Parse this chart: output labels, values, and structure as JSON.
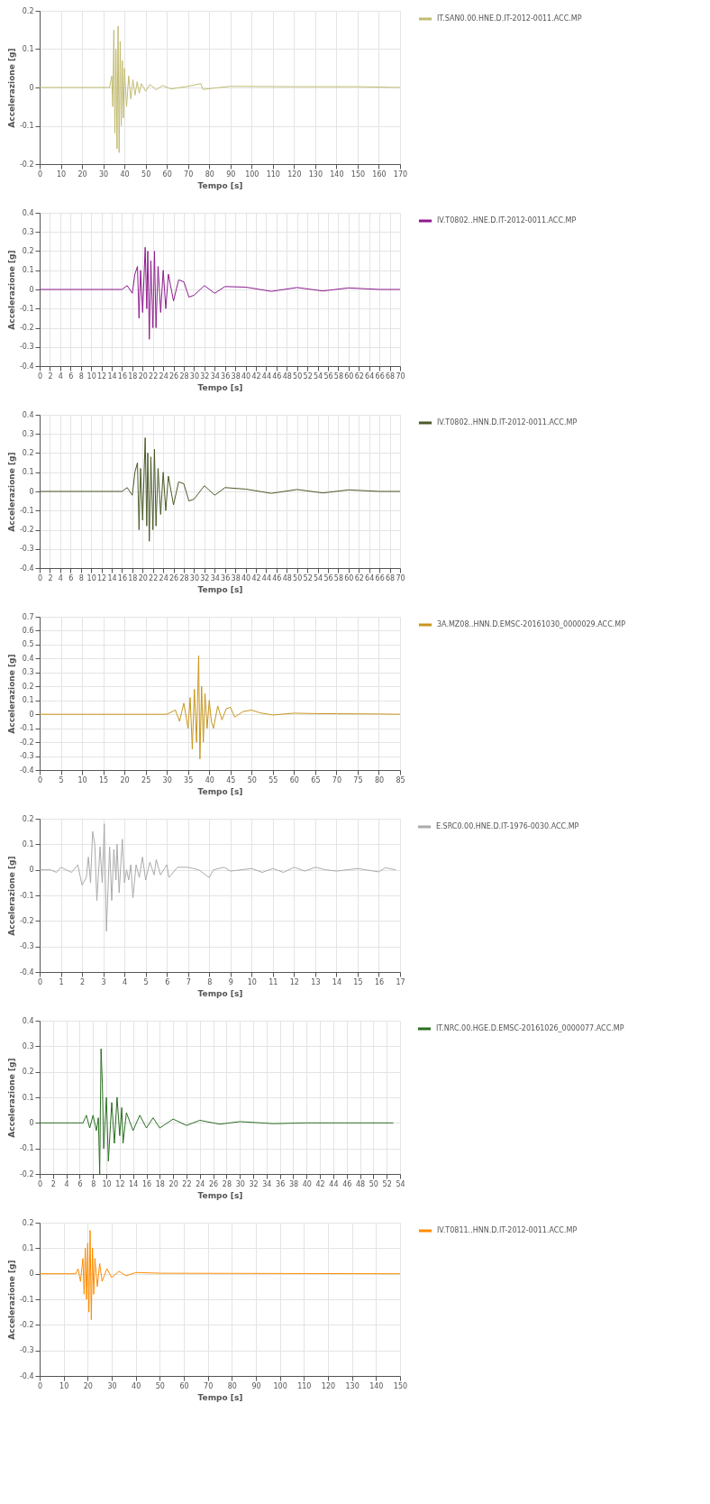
{
  "chart_data": [
    {
      "type": "line",
      "xlabel": "Tempo [s]",
      "ylabel": "Accelerazione [g]",
      "grid": true,
      "legend": "right",
      "xlim": [
        0,
        170
      ],
      "ylim": [
        -0.2,
        0.2
      ],
      "xticks": [
        0,
        10,
        20,
        30,
        40,
        50,
        60,
        70,
        80,
        90,
        100,
        110,
        120,
        130,
        140,
        150,
        160,
        170
      ],
      "yticks": [
        -0.2,
        -0.1,
        0,
        0.1,
        0.2
      ],
      "x": [
        0,
        33,
        34,
        34.5,
        35,
        35.5,
        36,
        36.5,
        37,
        37.5,
        38,
        38.5,
        39,
        39.5,
        40,
        41,
        42,
        43,
        44,
        45,
        46,
        47,
        48,
        50,
        52,
        55,
        58,
        62,
        70,
        76,
        77,
        90,
        120,
        150,
        170
      ],
      "series": [
        {
          "name": "IT.SAN0.00.HNE.D.IT-2012-0011.ACC.MP",
          "color": "#c2bc72",
          "values": [
            0,
            0,
            0.03,
            -0.05,
            0.15,
            -0.12,
            0.1,
            -0.16,
            0.16,
            -0.17,
            0.12,
            -0.1,
            0.07,
            -0.08,
            0.05,
            -0.05,
            0.03,
            -0.03,
            0.02,
            -0.02,
            0.015,
            -0.015,
            0.01,
            -0.01,
            0.008,
            -0.006,
            0.005,
            -0.004,
            0.003,
            0.01,
            -0.005,
            0.003,
            0.002,
            0.002,
            0
          ]
        }
      ]
    },
    {
      "type": "line",
      "xlabel": "Tempo [s]",
      "ylabel": "Accelerazione [g]",
      "grid": true,
      "legend": "right",
      "xlim": [
        0,
        70
      ],
      "ylim": [
        -0.4,
        0.4
      ],
      "xticks": [
        0,
        2,
        4,
        6,
        8,
        10,
        12,
        14,
        16,
        18,
        20,
        22,
        24,
        26,
        28,
        30,
        32,
        34,
        36,
        38,
        40,
        42,
        44,
        46,
        48,
        50,
        52,
        54,
        56,
        58,
        60,
        62,
        64,
        66,
        68,
        70
      ],
      "yticks": [
        -0.4,
        -0.3,
        -0.2,
        -0.1,
        0,
        0.1,
        0.2,
        0.3,
        0.4
      ],
      "x": [
        0,
        16,
        17,
        18,
        18.5,
        19,
        19.3,
        19.6,
        20,
        20.5,
        20.8,
        21,
        21.3,
        21.6,
        22,
        22.3,
        22.6,
        23,
        23.5,
        24,
        24.5,
        25,
        26,
        27,
        28,
        29,
        30,
        32,
        34,
        36,
        40,
        45,
        50,
        55,
        60,
        66,
        70
      ],
      "series": [
        {
          "name": "IV.T0802..HNE.D.IT-2012-0011.ACC.MP",
          "color": "#8e1a8e",
          "values": [
            0,
            0,
            0.02,
            -0.02,
            0.08,
            0.12,
            -0.15,
            0.1,
            -0.12,
            0.22,
            -0.1,
            0.2,
            -0.26,
            0.15,
            -0.2,
            0.2,
            -0.2,
            0.12,
            -0.12,
            0.1,
            -0.1,
            0.08,
            -0.06,
            0.05,
            0.04,
            -0.04,
            -0.03,
            0.02,
            -0.02,
            0.015,
            0.012,
            -0.01,
            0.01,
            -0.008,
            0.008,
            0,
            0
          ]
        }
      ]
    },
    {
      "type": "line",
      "xlabel": "Tempo [s]",
      "ylabel": "Accelerazione [g]",
      "grid": true,
      "legend": "right",
      "xlim": [
        0,
        70
      ],
      "ylim": [
        -0.4,
        0.4
      ],
      "xticks": [
        0,
        2,
        4,
        6,
        8,
        10,
        12,
        14,
        16,
        18,
        20,
        22,
        24,
        26,
        28,
        30,
        32,
        34,
        36,
        38,
        40,
        42,
        44,
        46,
        48,
        50,
        52,
        54,
        56,
        58,
        60,
        62,
        64,
        66,
        68,
        70
      ],
      "yticks": [
        -0.4,
        -0.3,
        -0.2,
        -0.1,
        0,
        0.1,
        0.2,
        0.3,
        0.4
      ],
      "x": [
        0,
        16,
        17,
        18,
        18.5,
        19,
        19.3,
        19.6,
        20,
        20.5,
        20.8,
        21,
        21.3,
        21.6,
        22,
        22.3,
        22.6,
        23,
        23.5,
        24,
        24.5,
        25,
        26,
        27,
        28,
        29,
        30,
        32,
        34,
        36,
        40,
        45,
        50,
        55,
        60,
        66,
        70
      ],
      "series": [
        {
          "name": "IV.T0802..HNN.D.IT-2012-0011.ACC.MP",
          "color": "#4a5a28",
          "values": [
            0,
            0,
            0.02,
            -0.02,
            0.1,
            0.15,
            -0.2,
            0.12,
            -0.15,
            0.28,
            -0.18,
            0.2,
            -0.26,
            0.18,
            -0.2,
            0.22,
            -0.18,
            0.12,
            -0.12,
            0.1,
            -0.1,
            0.08,
            -0.07,
            0.05,
            0.04,
            -0.05,
            -0.04,
            0.03,
            -0.02,
            0.02,
            0.012,
            -0.01,
            0.01,
            -0.008,
            0.008,
            0,
            0
          ]
        }
      ]
    },
    {
      "type": "line",
      "xlabel": "Tempo [s]",
      "ylabel": "Accelerazione [g]",
      "grid": true,
      "legend": "right",
      "xlim": [
        0,
        85
      ],
      "ylim": [
        -0.4,
        0.7
      ],
      "xticks": [
        0,
        5,
        10,
        15,
        20,
        25,
        30,
        35,
        40,
        45,
        50,
        55,
        60,
        65,
        70,
        75,
        80,
        85
      ],
      "yticks": [
        -0.4,
        -0.3,
        -0.2,
        -0.1,
        0,
        0.1,
        0.2,
        0.3,
        0.4,
        0.5,
        0.6,
        0.7
      ],
      "x": [
        0,
        30,
        32,
        33,
        34,
        35,
        35.5,
        36,
        36.5,
        37,
        37.5,
        37.8,
        38.2,
        38.6,
        39,
        39.5,
        40,
        40.5,
        41,
        42,
        43,
        44,
        45,
        46,
        48,
        50,
        52,
        55,
        60,
        65,
        70,
        75,
        80,
        85
      ],
      "series": [
        {
          "name": "3A.MZ08..HNN.D.EMSC-20161030_0000029.ACC.MP",
          "color": "#c8961e",
          "values": [
            0,
            0,
            0.03,
            -0.05,
            0.08,
            -0.1,
            0.12,
            -0.25,
            0.18,
            -0.2,
            0.42,
            -0.32,
            0.2,
            -0.2,
            0.15,
            -0.1,
            0.1,
            -0.05,
            -0.1,
            0.06,
            -0.04,
            0.04,
            0.05,
            -0.02,
            0.02,
            0.03,
            0.01,
            -0.005,
            0.008,
            0.005,
            0.004,
            0.003,
            0.002,
            0
          ]
        }
      ]
    },
    {
      "type": "line",
      "xlabel": "Tempo [s]",
      "ylabel": "Accelerazione [g]",
      "grid": true,
      "legend": "right",
      "xlim": [
        0,
        17
      ],
      "ylim": [
        -0.4,
        0.2
      ],
      "xticks": [
        0,
        1,
        2,
        3,
        4,
        5,
        6,
        7,
        8,
        9,
        10,
        11,
        12,
        13,
        14,
        15,
        16,
        17
      ],
      "yticks": [
        -0.4,
        -0.3,
        -0.2,
        -0.1,
        0,
        0.1,
        0.2
      ],
      "x": [
        0,
        0.5,
        0.8,
        1,
        1.5,
        1.8,
        2,
        2.2,
        2.3,
        2.4,
        2.5,
        2.6,
        2.7,
        2.85,
        2.95,
        3.05,
        3.15,
        3.3,
        3.4,
        3.5,
        3.6,
        3.65,
        3.75,
        3.9,
        4,
        4.1,
        4.2,
        4.3,
        4.4,
        4.55,
        4.7,
        4.85,
        5,
        5.2,
        5.4,
        5.5,
        5.7,
        6,
        6.1,
        6.5,
        7,
        7.5,
        8,
        8.2,
        8.7,
        9,
        10,
        10.5,
        11,
        11.5,
        12,
        12.5,
        13,
        13.5,
        14,
        15,
        16,
        16.3,
        16.8
      ],
      "series": [
        {
          "name": "E.SRC0.00.HNE.D.IT-1976-0030.ACC.MP",
          "color": "#ababab",
          "values": [
            0,
            0,
            -0.01,
            0.01,
            -0.01,
            0.02,
            -0.06,
            -0.03,
            0.05,
            -0.05,
            0.15,
            0.1,
            -0.12,
            0.09,
            -0.05,
            0.18,
            -0.24,
            0.09,
            -0.12,
            0.08,
            -0.04,
            0.1,
            -0.09,
            0.12,
            -0.05,
            0,
            -0.04,
            0.02,
            -0.11,
            0.02,
            -0.03,
            0.05,
            -0.04,
            0.03,
            -0.02,
            0.04,
            -0.02,
            0.02,
            -0.03,
            0.01,
            0.01,
            0,
            -0.03,
            0,
            0.01,
            -0.005,
            0.005,
            -0.01,
            0.005,
            -0.01,
            0.01,
            -0.005,
            0.01,
            0,
            -0.005,
            0.005,
            -0.008,
            0.008,
            0
          ]
        }
      ]
    },
    {
      "type": "line",
      "xlabel": "Tempo [s]",
      "ylabel": "Accelerazione [g]",
      "grid": true,
      "legend": "right",
      "xlim": [
        0,
        54
      ],
      "ylim": [
        -0.2,
        0.4
      ],
      "xticks": [
        0,
        2,
        4,
        6,
        8,
        10,
        12,
        14,
        16,
        18,
        20,
        22,
        24,
        26,
        28,
        30,
        32,
        34,
        36,
        38,
        40,
        42,
        44,
        46,
        48,
        50,
        52,
        54
      ],
      "yticks": [
        -0.2,
        -0.1,
        0,
        0.1,
        0.2,
        0.3,
        0.4
      ],
      "x": [
        0,
        6.5,
        7,
        7.5,
        8,
        8.5,
        8.8,
        9,
        9.2,
        9.4,
        9.6,
        10,
        10.3,
        10.8,
        11.2,
        11.6,
        12,
        12.3,
        12.5,
        13,
        14,
        15,
        16,
        17,
        18,
        20,
        22,
        24,
        27,
        30,
        35,
        40,
        53
      ],
      "series": [
        {
          "name": "IT.NRC.00.HGE.D.EMSC-20161026_0000077.ACC.MP",
          "color": "#2a6e22",
          "values": [
            0,
            0,
            0.03,
            -0.02,
            0.03,
            -0.03,
            0.02,
            -0.2,
            0.29,
            0.15,
            -0.1,
            0.1,
            -0.15,
            0.08,
            -0.08,
            0.1,
            -0.05,
            0.06,
            -0.08,
            0.04,
            -0.03,
            0.03,
            -0.02,
            0.02,
            -0.02,
            0.015,
            -0.01,
            0.01,
            -0.005,
            0.005,
            -0.003,
            0,
            0
          ]
        }
      ]
    },
    {
      "type": "line",
      "xlabel": "Tempo [s]",
      "ylabel": "Accelerazione [g]",
      "grid": true,
      "legend": "right",
      "xlim": [
        0,
        150
      ],
      "ylim": [
        -0.4,
        0.2
      ],
      "xticks": [
        0,
        10,
        20,
        30,
        40,
        50,
        60,
        70,
        80,
        90,
        100,
        110,
        120,
        130,
        140,
        150
      ],
      "yticks": [
        -0.4,
        -0.3,
        -0.2,
        -0.1,
        0,
        0.1,
        0.2
      ],
      "x": [
        0,
        15,
        16,
        17,
        18,
        18.5,
        19,
        19.5,
        20,
        20.5,
        21,
        21.5,
        22,
        22.5,
        23,
        24,
        25,
        26,
        28,
        30,
        33,
        36,
        40,
        50,
        150
      ],
      "series": [
        {
          "name": "IV.T0811..HNN.D.IT-2012-0011.ACC.MP",
          "color": "#ff8c00",
          "values": [
            0,
            0,
            0.02,
            -0.03,
            0.06,
            -0.08,
            0.1,
            -0.1,
            0.12,
            -0.15,
            0.17,
            -0.18,
            0.1,
            -0.08,
            0.06,
            -0.05,
            0.04,
            -0.03,
            0.02,
            -0.015,
            0.01,
            -0.008,
            0.005,
            0.002,
            0
          ]
        }
      ]
    }
  ]
}
